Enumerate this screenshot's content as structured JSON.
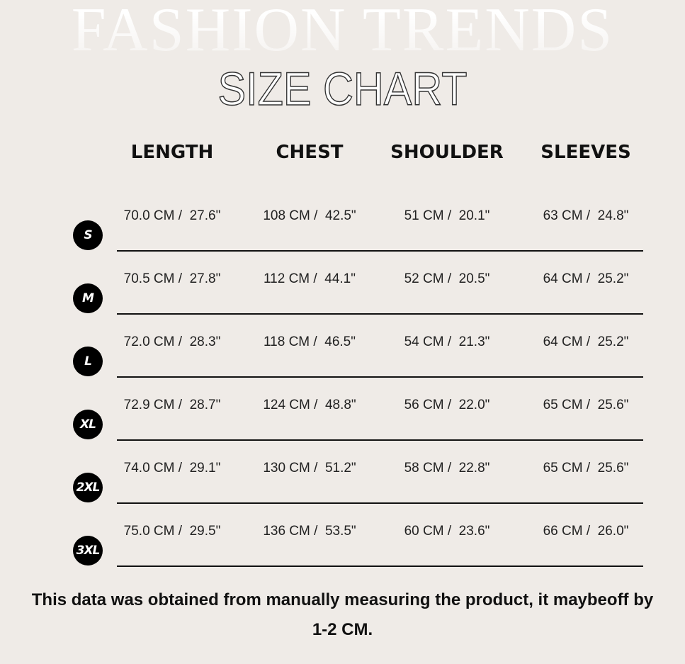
{
  "background_text": "FASHION TRENDS",
  "title": "SIZE CHART",
  "headers": [
    "LENGTH",
    "CHEST",
    "SHOULDER",
    "SLEEVES"
  ],
  "rows": [
    {
      "size": "S",
      "values": [
        "70.0 CM /  27.6\"",
        "108 CM /  42.5\"",
        "51 CM /  20.1\"",
        "63 CM /  24.8\""
      ]
    },
    {
      "size": "M",
      "values": [
        "70.5 CM /  27.8\"",
        "112 CM /  44.1\"",
        "52 CM /  20.5\"",
        "64 CM /  25.2\""
      ]
    },
    {
      "size": "L",
      "values": [
        "72.0 CM /  28.3\"",
        "118 CM /  46.5\"",
        "54 CM /  21.3\"",
        "64 CM /  25.2\""
      ]
    },
    {
      "size": "XL",
      "values": [
        "72.9 CM /  28.7\"",
        "124 CM /  48.8\"",
        "56 CM /  22.0\"",
        "65 CM /  25.6\""
      ]
    },
    {
      "size": "2XL",
      "values": [
        "74.0 CM /  29.1\"",
        "130 CM /  51.2\"",
        "58 CM /  22.8\"",
        "65 CM /  25.6\""
      ]
    },
    {
      "size": "3XL",
      "values": [
        "75.0 CM /  29.5\"",
        "136 CM /  53.5\"",
        "60 CM /  23.6\"",
        "66 CM /  26.0\""
      ]
    }
  ],
  "note": "This data was obtained from manually measuring the product, it maybeoff by 1-2 CM.",
  "colors": {
    "background": "#efebe7",
    "badge": "#000000"
  }
}
